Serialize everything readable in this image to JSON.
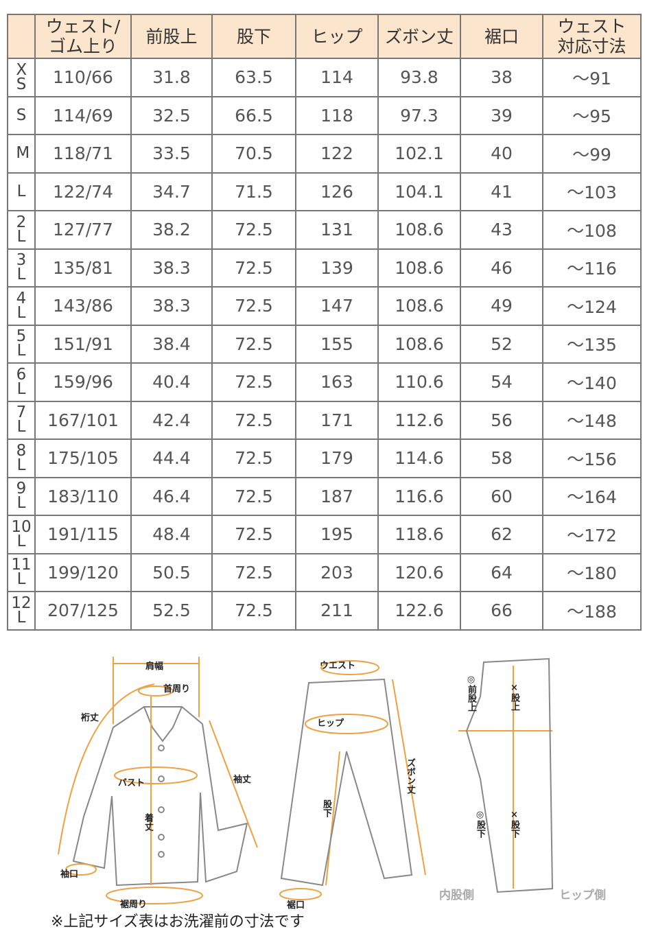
{
  "table": {
    "headers": [
      "",
      "ウェスト/\nゴム上り",
      "前股上",
      "股下",
      "ヒップ",
      "ズボン丈",
      "裾口",
      "ウェスト\n対応寸法"
    ],
    "rows": [
      [
        "XS",
        "110/66",
        "31.8",
        "63.5",
        "114",
        "93.8",
        "38",
        "～91"
      ],
      [
        "S",
        "114/69",
        "32.5",
        "66.5",
        "118",
        "97.3",
        "39",
        "～95"
      ],
      [
        "M",
        "118/71",
        "33.5",
        "70.5",
        "122",
        "102.1",
        "40",
        "～99"
      ],
      [
        "L",
        "122/74",
        "34.7",
        "71.5",
        "126",
        "104.1",
        "41",
        "～103"
      ],
      [
        "2L",
        "127/77",
        "38.2",
        "72.5",
        "131",
        "108.6",
        "43",
        "～108"
      ],
      [
        "3L",
        "135/81",
        "38.3",
        "72.5",
        "139",
        "108.6",
        "46",
        "～116"
      ],
      [
        "4L",
        "143/86",
        "38.3",
        "72.5",
        "147",
        "108.6",
        "49",
        "～124"
      ],
      [
        "5L",
        "151/91",
        "38.4",
        "72.5",
        "155",
        "108.6",
        "52",
        "～135"
      ],
      [
        "6L",
        "159/96",
        "40.4",
        "72.5",
        "163",
        "110.6",
        "54",
        "～140"
      ],
      [
        "7L",
        "167/101",
        "42.4",
        "72.5",
        "171",
        "112.6",
        "56",
        "～148"
      ],
      [
        "8L",
        "175/105",
        "44.4",
        "72.5",
        "179",
        "114.6",
        "58",
        "～156"
      ],
      [
        "9L",
        "183/110",
        "46.4",
        "72.5",
        "187",
        "116.6",
        "60",
        "～164"
      ],
      [
        "10L",
        "191/115",
        "48.4",
        "72.5",
        "195",
        "118.6",
        "62",
        "～172"
      ],
      [
        "11L",
        "199/120",
        "50.5",
        "72.5",
        "203",
        "120.6",
        "64",
        "～180"
      ],
      [
        "12L",
        "207/125",
        "52.5",
        "72.5",
        "211",
        "122.6",
        "66",
        "～188"
      ]
    ]
  },
  "diagram": {
    "shirt": {
      "shoulder": "肩幅",
      "neck": "首周り",
      "yuki": "裄丈",
      "bust": "バスト",
      "sleeve": "袖丈",
      "length": "着丈",
      "cuff": "袖口",
      "hem": "裾周り"
    },
    "pants": {
      "waist": "ウエスト",
      "hip": "ヒップ",
      "pants_length": "ズボン丈",
      "inseam": "股下",
      "hem": "裾口"
    },
    "side": {
      "front_rise": "◎前股上",
      "rise": "×股上",
      "inseam_o": "◎股下",
      "inseam_x": "×股下",
      "inner": "内股側",
      "hip_side": "ヒップ側"
    },
    "accent_color": "#f0a040"
  },
  "note": "※上記サイズ表はお洗濯前の寸法です"
}
